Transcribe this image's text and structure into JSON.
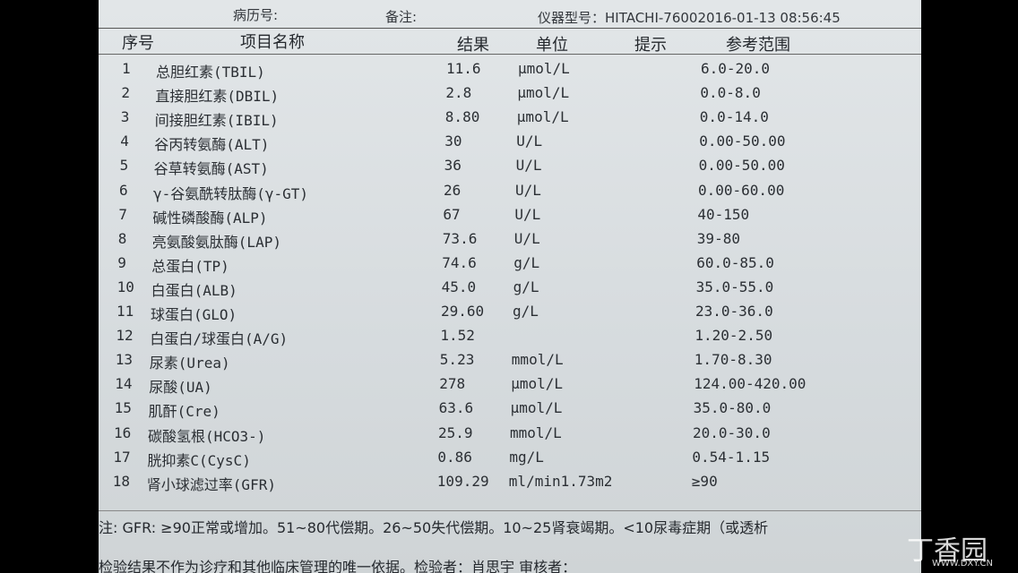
{
  "header": {
    "record_no": "病历号:",
    "remark": "备注:",
    "instrument": "仪器型号：HITACHI-76002016-01-13 08:56:45"
  },
  "columns": [
    "序号",
    "项目名称",
    "结果",
    "单位",
    "提示",
    "参考范围"
  ],
  "rows": [
    {
      "no": "1",
      "name": "总胆红素(TBIL)",
      "result": "11.6",
      "unit": "μmol/L",
      "range": "6.0-20.0"
    },
    {
      "no": "2",
      "name": "直接胆红素(DBIL)",
      "result": "2.8",
      "unit": "μmol/L",
      "range": "0.0-8.0"
    },
    {
      "no": "3",
      "name": "间接胆红素(IBIL)",
      "result": "8.80",
      "unit": "μmol/L",
      "range": "0.0-14.0"
    },
    {
      "no": "4",
      "name": "谷丙转氨酶(ALT)",
      "result": "30",
      "unit": "U/L",
      "range": "0.00-50.00"
    },
    {
      "no": "5",
      "name": "谷草转氨酶(AST)",
      "result": "36",
      "unit": "U/L",
      "range": "0.00-50.00"
    },
    {
      "no": "6",
      "name": "γ-谷氨酰转肽酶(γ-GT)",
      "result": "26",
      "unit": "U/L",
      "range": "0.00-60.00"
    },
    {
      "no": "7",
      "name": "碱性磷酸酶(ALP)",
      "result": "67",
      "unit": "U/L",
      "range": "40-150"
    },
    {
      "no": "8",
      "name": "亮氨酸氨肽酶(LAP)",
      "result": "73.6",
      "unit": "U/L",
      "range": "39-80"
    },
    {
      "no": "9",
      "name": "总蛋白(TP)",
      "result": "74.6",
      "unit": "g/L",
      "range": "60.0-85.0"
    },
    {
      "no": "10",
      "name": "白蛋白(ALB)",
      "result": "45.0",
      "unit": "g/L",
      "range": "35.0-55.0"
    },
    {
      "no": "11",
      "name": "球蛋白(GLO)",
      "result": "29.60",
      "unit": "g/L",
      "range": "23.0-36.0"
    },
    {
      "no": "12",
      "name": "白蛋白/球蛋白(A/G)",
      "result": "1.52",
      "range": "1.20-2.50"
    },
    {
      "no": "13",
      "name": "尿素(Urea)",
      "result": "5.23",
      "unit": "mmol/L",
      "range": "1.70-8.30"
    },
    {
      "no": "14",
      "name": "尿酸(UA)",
      "result": "278",
      "unit": "μmol/L",
      "range": "124.00-420.00"
    },
    {
      "no": "15",
      "name": "肌酐(Cre)",
      "result": "63.6",
      "unit": "μmol/L",
      "range": "35.0-80.0"
    },
    {
      "no": "16",
      "name": "碳酸氢根(HCO3-)",
      "result": "25.9",
      "unit": "mmol/L",
      "range": "20.0-30.0"
    },
    {
      "no": "17",
      "name": "胱抑素C(CysC)",
      "result": "0.86",
      "unit": "mg/L",
      "range": "0.54-1.15"
    },
    {
      "no": "18",
      "name": "肾小球滤过率(GFR)",
      "result": "109.29",
      "unit": "ml/min1.73m2",
      "range": "≥90"
    }
  ],
  "footer": {
    "note": "注: GFR: ≥90正常或增加。51~80代偿期。26~50失代偿期。10~25肾衰竭期。<10尿毒症期（或透析",
    "disclaimer": "检验结果不作为诊疗和其他临床管理的唯一依据。检验者：肖思宇    审核者："
  },
  "watermark": {
    "name": "丁香园",
    "url": "WWW.DXY.CN"
  }
}
